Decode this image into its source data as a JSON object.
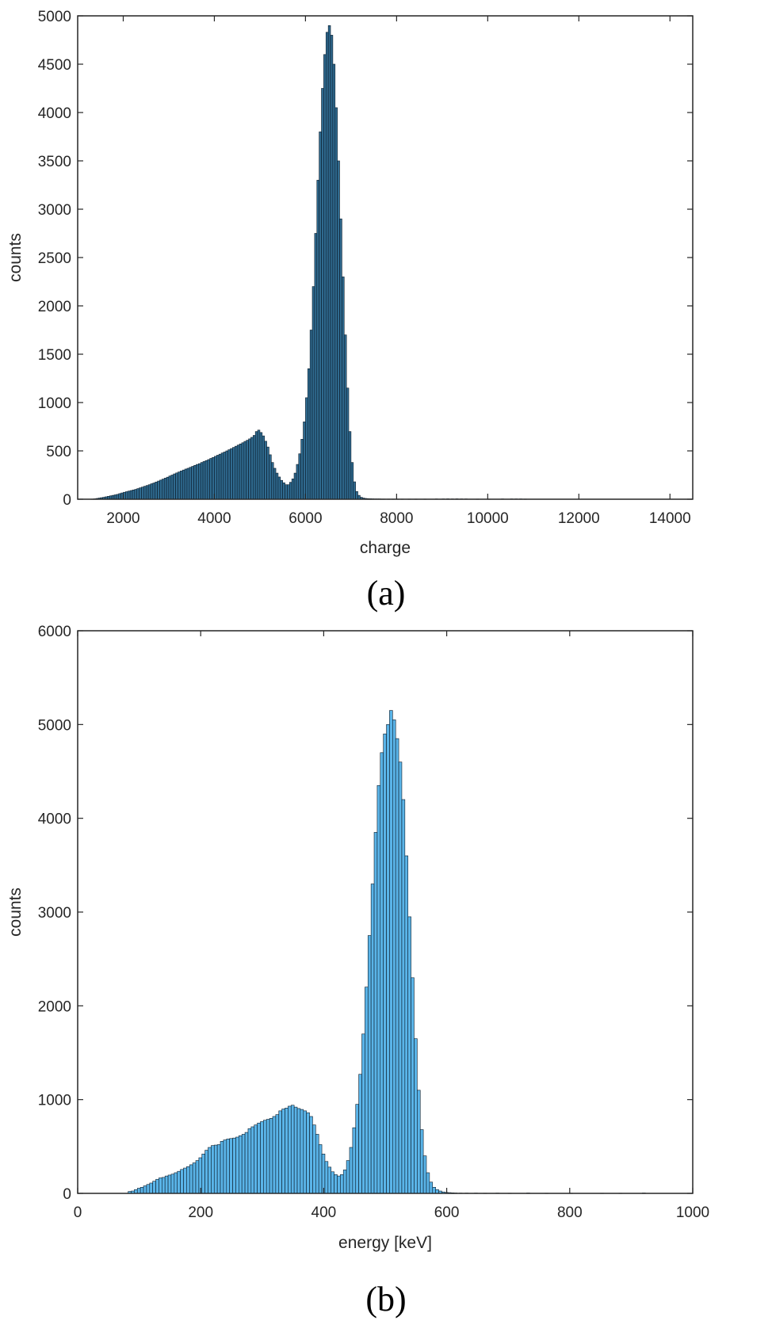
{
  "chart_data": [
    {
      "type": "bar",
      "caption": "(a)",
      "xlabel": "charge",
      "ylabel": "counts",
      "xlim": [
        1000,
        14500
      ],
      "ylim": [
        0,
        5000
      ],
      "xticks": [
        "2000",
        "4000",
        "6000",
        "8000",
        "10000",
        "12000",
        "14000"
      ],
      "yticks": [
        "0",
        "500",
        "1000",
        "1500",
        "2000",
        "2500",
        "3000",
        "3500",
        "4000",
        "4500",
        "5000"
      ],
      "grid": false,
      "bar_color": "#2f6a8f",
      "edge_color": "#0a1a28",
      "bin_width": 50,
      "bins": [
        [
          1300,
          2
        ],
        [
          1350,
          4
        ],
        [
          1400,
          8
        ],
        [
          1450,
          12
        ],
        [
          1500,
          16
        ],
        [
          1550,
          20
        ],
        [
          1600,
          25
        ],
        [
          1650,
          30
        ],
        [
          1700,
          35
        ],
        [
          1750,
          40
        ],
        [
          1800,
          45
        ],
        [
          1850,
          50
        ],
        [
          1900,
          58
        ],
        [
          1950,
          65
        ],
        [
          2000,
          72
        ],
        [
          2050,
          78
        ],
        [
          2100,
          84
        ],
        [
          2150,
          90
        ],
        [
          2200,
          96
        ],
        [
          2250,
          102
        ],
        [
          2300,
          110
        ],
        [
          2350,
          118
        ],
        [
          2400,
          126
        ],
        [
          2450,
          134
        ],
        [
          2500,
          142
        ],
        [
          2550,
          150
        ],
        [
          2600,
          160
        ],
        [
          2650,
          168
        ],
        [
          2700,
          178
        ],
        [
          2750,
          188
        ],
        [
          2800,
          198
        ],
        [
          2850,
          208
        ],
        [
          2900,
          218
        ],
        [
          2950,
          228
        ],
        [
          3000,
          240
        ],
        [
          3050,
          250
        ],
        [
          3100,
          262
        ],
        [
          3150,
          272
        ],
        [
          3200,
          282
        ],
        [
          3250,
          292
        ],
        [
          3300,
          302
        ],
        [
          3350,
          312
        ],
        [
          3400,
          320
        ],
        [
          3450,
          330
        ],
        [
          3500,
          340
        ],
        [
          3550,
          350
        ],
        [
          3600,
          360
        ],
        [
          3650,
          368
        ],
        [
          3700,
          380
        ],
        [
          3750,
          390
        ],
        [
          3800,
          400
        ],
        [
          3850,
          410
        ],
        [
          3900,
          422
        ],
        [
          3950,
          432
        ],
        [
          4000,
          444
        ],
        [
          4050,
          455
        ],
        [
          4100,
          466
        ],
        [
          4150,
          478
        ],
        [
          4200,
          488
        ],
        [
          4250,
          500
        ],
        [
          4300,
          512
        ],
        [
          4350,
          524
        ],
        [
          4400,
          536
        ],
        [
          4450,
          548
        ],
        [
          4500,
          560
        ],
        [
          4550,
          572
        ],
        [
          4600,
          584
        ],
        [
          4650,
          598
        ],
        [
          4700,
          610
        ],
        [
          4750,
          624
        ],
        [
          4800,
          640
        ],
        [
          4850,
          660
        ],
        [
          4900,
          700
        ],
        [
          4950,
          715
        ],
        [
          5000,
          690
        ],
        [
          5050,
          655
        ],
        [
          5100,
          600
        ],
        [
          5150,
          540
        ],
        [
          5200,
          460
        ],
        [
          5250,
          380
        ],
        [
          5300,
          320
        ],
        [
          5350,
          270
        ],
        [
          5400,
          230
        ],
        [
          5450,
          195
        ],
        [
          5500,
          170
        ],
        [
          5550,
          150
        ],
        [
          5600,
          150
        ],
        [
          5650,
          175
        ],
        [
          5700,
          210
        ],
        [
          5750,
          270
        ],
        [
          5800,
          360
        ],
        [
          5850,
          470
        ],
        [
          5900,
          620
        ],
        [
          5950,
          800
        ],
        [
          6000,
          1050
        ],
        [
          6050,
          1350
        ],
        [
          6100,
          1750
        ],
        [
          6150,
          2200
        ],
        [
          6200,
          2750
        ],
        [
          6250,
          3300
        ],
        [
          6300,
          3800
        ],
        [
          6350,
          4250
        ],
        [
          6400,
          4600
        ],
        [
          6450,
          4830
        ],
        [
          6500,
          4900
        ],
        [
          6550,
          4800
        ],
        [
          6600,
          4500
        ],
        [
          6650,
          4050
        ],
        [
          6700,
          3500
        ],
        [
          6750,
          2900
        ],
        [
          6800,
          2300
        ],
        [
          6850,
          1700
        ],
        [
          6900,
          1150
        ],
        [
          6950,
          700
        ],
        [
          7000,
          380
        ],
        [
          7050,
          180
        ],
        [
          7100,
          80
        ],
        [
          7150,
          40
        ],
        [
          7200,
          20
        ],
        [
          7250,
          12
        ],
        [
          7300,
          8
        ],
        [
          7350,
          6
        ],
        [
          7400,
          5
        ],
        [
          7450,
          4
        ],
        [
          7500,
          3
        ],
        [
          7550,
          3
        ],
        [
          7600,
          3
        ],
        [
          7650,
          2
        ],
        [
          7700,
          2
        ],
        [
          7800,
          2
        ],
        [
          7900,
          2
        ],
        [
          8000,
          2
        ],
        [
          8100,
          2
        ],
        [
          8250,
          2
        ],
        [
          8400,
          2
        ],
        [
          8600,
          2
        ],
        [
          8850,
          3
        ],
        [
          9000,
          3
        ],
        [
          9100,
          4
        ],
        [
          9200,
          3
        ],
        [
          9300,
          4
        ],
        [
          9400,
          3
        ],
        [
          9500,
          3
        ],
        [
          9750,
          2
        ],
        [
          10000,
          2
        ],
        [
          10300,
          3
        ],
        [
          10500,
          3
        ],
        [
          10600,
          3
        ],
        [
          10700,
          3
        ],
        [
          10800,
          2
        ]
      ]
    },
    {
      "type": "bar",
      "caption": "(b)",
      "xlabel": "energy [keV]",
      "ylabel": "counts",
      "xlim": [
        0,
        1000
      ],
      "ylim": [
        0,
        6000
      ],
      "xticks": [
        "0",
        "200",
        "400",
        "600",
        "800",
        "1000"
      ],
      "yticks": [
        "0",
        "1000",
        "2000",
        "3000",
        "4000",
        "5000",
        "6000"
      ],
      "grid": false,
      "bar_color": "#5ab4e8",
      "edge_color": "#0a1a28",
      "bin_width": 5,
      "bins": [
        [
          82,
          20
        ],
        [
          87,
          25
        ],
        [
          92,
          40
        ],
        [
          97,
          55
        ],
        [
          102,
          65
        ],
        [
          107,
          80
        ],
        [
          112,
          95
        ],
        [
          117,
          110
        ],
        [
          122,
          130
        ],
        [
          127,
          150
        ],
        [
          132,
          165
        ],
        [
          137,
          170
        ],
        [
          142,
          185
        ],
        [
          147,
          195
        ],
        [
          152,
          205
        ],
        [
          157,
          220
        ],
        [
          162,
          235
        ],
        [
          167,
          255
        ],
        [
          172,
          270
        ],
        [
          177,
          285
        ],
        [
          182,
          305
        ],
        [
          187,
          325
        ],
        [
          192,
          350
        ],
        [
          197,
          380
        ],
        [
          202,
          420
        ],
        [
          207,
          460
        ],
        [
          212,
          490
        ],
        [
          217,
          510
        ],
        [
          222,
          515
        ],
        [
          227,
          520
        ],
        [
          232,
          555
        ],
        [
          237,
          570
        ],
        [
          242,
          580
        ],
        [
          247,
          585
        ],
        [
          252,
          590
        ],
        [
          257,
          600
        ],
        [
          262,
          615
        ],
        [
          267,
          630
        ],
        [
          272,
          650
        ],
        [
          277,
          690
        ],
        [
          282,
          710
        ],
        [
          287,
          730
        ],
        [
          292,
          750
        ],
        [
          297,
          765
        ],
        [
          302,
          780
        ],
        [
          307,
          790
        ],
        [
          312,
          800
        ],
        [
          317,
          820
        ],
        [
          322,
          840
        ],
        [
          327,
          880
        ],
        [
          332,
          900
        ],
        [
          337,
          910
        ],
        [
          342,
          930
        ],
        [
          347,
          940
        ],
        [
          352,
          920
        ],
        [
          357,
          905
        ],
        [
          362,
          895
        ],
        [
          367,
          880
        ],
        [
          372,
          860
        ],
        [
          377,
          820
        ],
        [
          382,
          730
        ],
        [
          387,
          630
        ],
        [
          392,
          520
        ],
        [
          397,
          420
        ],
        [
          402,
          340
        ],
        [
          407,
          280
        ],
        [
          412,
          230
        ],
        [
          417,
          200
        ],
        [
          422,
          185
        ],
        [
          427,
          200
        ],
        [
          432,
          250
        ],
        [
          437,
          350
        ],
        [
          442,
          490
        ],
        [
          447,
          700
        ],
        [
          452,
          950
        ],
        [
          457,
          1270
        ],
        [
          462,
          1700
        ],
        [
          467,
          2200
        ],
        [
          472,
          2750
        ],
        [
          477,
          3300
        ],
        [
          482,
          3850
        ],
        [
          487,
          4350
        ],
        [
          492,
          4700
        ],
        [
          497,
          4900
        ],
        [
          502,
          5000
        ],
        [
          507,
          5150
        ],
        [
          512,
          5050
        ],
        [
          517,
          4850
        ],
        [
          522,
          4600
        ],
        [
          527,
          4200
        ],
        [
          532,
          3600
        ],
        [
          537,
          2950
        ],
        [
          542,
          2300
        ],
        [
          547,
          1650
        ],
        [
          552,
          1100
        ],
        [
          557,
          680
        ],
        [
          562,
          400
        ],
        [
          567,
          220
        ],
        [
          572,
          120
        ],
        [
          577,
          65
        ],
        [
          582,
          40
        ],
        [
          587,
          25
        ],
        [
          592,
          15
        ],
        [
          597,
          10
        ],
        [
          602,
          8
        ],
        [
          607,
          6
        ],
        [
          612,
          4
        ],
        [
          620,
          3
        ],
        [
          630,
          3
        ],
        [
          645,
          3
        ],
        [
          660,
          2
        ],
        [
          680,
          3
        ],
        [
          700,
          2
        ],
        [
          730,
          4
        ],
        [
          760,
          2
        ],
        [
          800,
          2
        ],
        [
          850,
          2
        ],
        [
          880,
          2
        ],
        [
          918,
          4
        ]
      ]
    }
  ]
}
